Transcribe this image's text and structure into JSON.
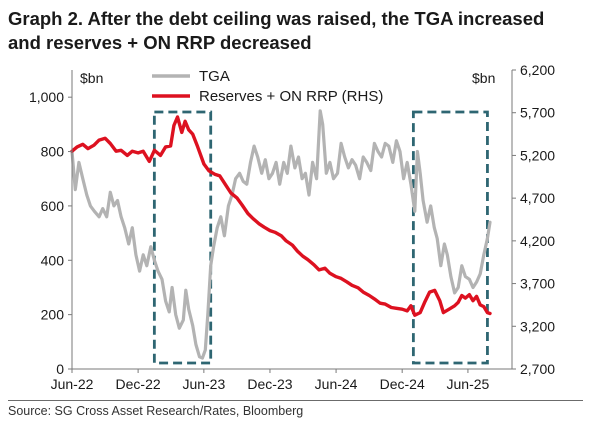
{
  "title_line1": "Graph 2.  After the debt ceiling was raised, the TGA increased",
  "title_line2": "and reserves + ON RRP decreased",
  "source": "Source: SG Cross Asset Research/Rates, Bloomberg",
  "chart_data": {
    "type": "line",
    "left_unit": "$bn",
    "right_unit": "$bn",
    "left_ylim": [
      0,
      1100
    ],
    "right_ylim": [
      2700,
      6200
    ],
    "left_ticks": [
      "1,000",
      "800",
      "600",
      "400",
      "200",
      "0"
    ],
    "left_tick_values": [
      1000,
      800,
      600,
      400,
      200,
      0
    ],
    "right_ticks": [
      "6,200",
      "5,700",
      "5,200",
      "4,700",
      "4,200",
      "3,700",
      "3,200",
      "2,700"
    ],
    "right_tick_values": [
      6200,
      5700,
      5200,
      4700,
      4200,
      3700,
      3200,
      2700
    ],
    "x_range": [
      "2022-06-01",
      "2025-10-01"
    ],
    "x_ticks": [
      {
        "label": "Jun-22",
        "date": "2022-06-01"
      },
      {
        "label": "Dec-22",
        "date": "2022-12-01"
      },
      {
        "label": "Jun-23",
        "date": "2023-06-01"
      },
      {
        "label": "Dec-23",
        "date": "2023-12-01"
      },
      {
        "label": "Jun-24",
        "date": "2024-06-01"
      },
      {
        "label": "Dec-24",
        "date": "2024-12-01"
      },
      {
        "label": "Jun-25",
        "date": "2025-06-01"
      }
    ],
    "highlight_periods": [
      {
        "x0": "2023-01-15",
        "x1": "2023-06-20"
      },
      {
        "x0": "2025-01-01",
        "x1": "2025-07-25"
      }
    ],
    "series": [
      {
        "name": "TGA",
        "axis": "left",
        "color": "#b3b3b3",
        "points": [
          [
            "2022-06-01",
            800
          ],
          [
            "2022-06-10",
            660
          ],
          [
            "2022-06-20",
            760
          ],
          [
            "2022-07-01",
            700
          ],
          [
            "2022-07-12",
            640
          ],
          [
            "2022-07-22",
            600
          ],
          [
            "2022-08-02",
            580
          ],
          [
            "2022-08-15",
            560
          ],
          [
            "2022-08-25",
            590
          ],
          [
            "2022-09-05",
            560
          ],
          [
            "2022-09-15",
            650
          ],
          [
            "2022-09-25",
            600
          ],
          [
            "2022-10-05",
            620
          ],
          [
            "2022-10-15",
            560
          ],
          [
            "2022-10-25",
            520
          ],
          [
            "2022-11-05",
            460
          ],
          [
            "2022-11-15",
            520
          ],
          [
            "2022-11-25",
            420
          ],
          [
            "2022-12-05",
            360
          ],
          [
            "2022-12-15",
            420
          ],
          [
            "2022-12-25",
            380
          ],
          [
            "2023-01-05",
            450
          ],
          [
            "2023-01-15",
            400
          ],
          [
            "2023-01-25",
            360
          ],
          [
            "2023-02-05",
            330
          ],
          [
            "2023-02-15",
            250
          ],
          [
            "2023-02-25",
            210
          ],
          [
            "2023-03-05",
            300
          ],
          [
            "2023-03-15",
            200
          ],
          [
            "2023-03-25",
            150
          ],
          [
            "2023-04-05",
            180
          ],
          [
            "2023-04-12",
            290
          ],
          [
            "2023-04-20",
            220
          ],
          [
            "2023-05-01",
            160
          ],
          [
            "2023-05-10",
            90
          ],
          [
            "2023-05-20",
            45
          ],
          [
            "2023-05-28",
            40
          ],
          [
            "2023-06-05",
            70
          ],
          [
            "2023-06-12",
            200
          ],
          [
            "2023-06-20",
            380
          ],
          [
            "2023-06-28",
            450
          ],
          [
            "2023-07-08",
            520
          ],
          [
            "2023-07-18",
            560
          ],
          [
            "2023-07-28",
            490
          ],
          [
            "2023-08-08",
            600
          ],
          [
            "2023-08-18",
            640
          ],
          [
            "2023-08-28",
            700
          ],
          [
            "2023-09-08",
            720
          ],
          [
            "2023-09-18",
            690
          ],
          [
            "2023-09-28",
            680
          ],
          [
            "2023-10-08",
            760
          ],
          [
            "2023-10-18",
            820
          ],
          [
            "2023-10-28",
            780
          ],
          [
            "2023-11-08",
            720
          ],
          [
            "2023-11-18",
            770
          ],
          [
            "2023-11-28",
            700
          ],
          [
            "2023-12-08",
            720
          ],
          [
            "2023-12-18",
            760
          ],
          [
            "2023-12-28",
            680
          ],
          [
            "2024-01-08",
            760
          ],
          [
            "2024-01-18",
            720
          ],
          [
            "2024-01-28",
            820
          ],
          [
            "2024-02-08",
            740
          ],
          [
            "2024-02-18",
            780
          ],
          [
            "2024-02-28",
            700
          ],
          [
            "2024-03-08",
            720
          ],
          [
            "2024-03-18",
            640
          ],
          [
            "2024-03-28",
            760
          ],
          [
            "2024-04-08",
            700
          ],
          [
            "2024-04-18",
            950
          ],
          [
            "2024-04-25",
            900
          ],
          [
            "2024-05-05",
            720
          ],
          [
            "2024-05-15",
            760
          ],
          [
            "2024-05-25",
            700
          ],
          [
            "2024-06-05",
            720
          ],
          [
            "2024-06-15",
            830
          ],
          [
            "2024-06-25",
            780
          ],
          [
            "2024-07-05",
            740
          ],
          [
            "2024-07-15",
            770
          ],
          [
            "2024-07-25",
            750
          ],
          [
            "2024-08-05",
            700
          ],
          [
            "2024-08-15",
            780
          ],
          [
            "2024-08-25",
            760
          ],
          [
            "2024-09-05",
            730
          ],
          [
            "2024-09-15",
            830
          ],
          [
            "2024-09-25",
            800
          ],
          [
            "2024-10-05",
            780
          ],
          [
            "2024-10-15",
            830
          ],
          [
            "2024-10-25",
            820
          ],
          [
            "2024-11-05",
            760
          ],
          [
            "2024-11-15",
            840
          ],
          [
            "2024-11-25",
            800
          ],
          [
            "2024-12-05",
            700
          ],
          [
            "2024-12-15",
            760
          ],
          [
            "2024-12-25",
            680
          ],
          [
            "2025-01-05",
            580
          ],
          [
            "2025-01-12",
            800
          ],
          [
            "2025-01-20",
            720
          ],
          [
            "2025-01-28",
            620
          ],
          [
            "2025-02-08",
            540
          ],
          [
            "2025-02-18",
            600
          ],
          [
            "2025-02-28",
            520
          ],
          [
            "2025-03-08",
            480
          ],
          [
            "2025-03-18",
            380
          ],
          [
            "2025-03-28",
            460
          ],
          [
            "2025-04-05",
            420
          ],
          [
            "2025-04-15",
            340
          ],
          [
            "2025-04-25",
            280
          ],
          [
            "2025-05-05",
            300
          ],
          [
            "2025-05-15",
            380
          ],
          [
            "2025-05-25",
            340
          ],
          [
            "2025-06-05",
            330
          ],
          [
            "2025-06-15",
            300
          ],
          [
            "2025-06-25",
            320
          ],
          [
            "2025-07-05",
            350
          ],
          [
            "2025-07-15",
            420
          ],
          [
            "2025-07-25",
            480
          ],
          [
            "2025-08-01",
            540
          ]
        ]
      },
      {
        "name": "Reserves + ON RRP (RHS)",
        "axis": "right",
        "color": "#dd1120",
        "points": [
          [
            "2022-06-01",
            5250
          ],
          [
            "2022-06-15",
            5300
          ],
          [
            "2022-07-01",
            5330
          ],
          [
            "2022-07-15",
            5280
          ],
          [
            "2022-08-01",
            5320
          ],
          [
            "2022-08-15",
            5380
          ],
          [
            "2022-09-01",
            5400
          ],
          [
            "2022-09-15",
            5340
          ],
          [
            "2022-10-01",
            5250
          ],
          [
            "2022-10-15",
            5260
          ],
          [
            "2022-11-01",
            5200
          ],
          [
            "2022-11-15",
            5250
          ],
          [
            "2022-12-01",
            5230
          ],
          [
            "2022-12-15",
            5250
          ],
          [
            "2023-01-01",
            5130
          ],
          [
            "2023-01-15",
            5260
          ],
          [
            "2023-02-01",
            5200
          ],
          [
            "2023-02-15",
            5300
          ],
          [
            "2023-03-01",
            5310
          ],
          [
            "2023-03-10",
            5550
          ],
          [
            "2023-03-20",
            5650
          ],
          [
            "2023-04-01",
            5470
          ],
          [
            "2023-04-10",
            5600
          ],
          [
            "2023-04-20",
            5500
          ],
          [
            "2023-05-01",
            5450
          ],
          [
            "2023-05-15",
            5300
          ],
          [
            "2023-06-01",
            5100
          ],
          [
            "2023-06-15",
            5020
          ],
          [
            "2023-07-01",
            4980
          ],
          [
            "2023-07-15",
            4960
          ],
          [
            "2023-08-01",
            4850
          ],
          [
            "2023-08-15",
            4760
          ],
          [
            "2023-09-01",
            4700
          ],
          [
            "2023-09-15",
            4620
          ],
          [
            "2023-10-01",
            4520
          ],
          [
            "2023-10-15",
            4460
          ],
          [
            "2023-11-01",
            4400
          ],
          [
            "2023-11-15",
            4360
          ],
          [
            "2023-12-01",
            4320
          ],
          [
            "2023-12-15",
            4300
          ],
          [
            "2024-01-01",
            4260
          ],
          [
            "2024-01-15",
            4200
          ],
          [
            "2024-02-01",
            4150
          ],
          [
            "2024-02-15",
            4080
          ],
          [
            "2024-03-01",
            4020
          ],
          [
            "2024-03-15",
            3980
          ],
          [
            "2024-04-01",
            3920
          ],
          [
            "2024-04-15",
            3860
          ],
          [
            "2024-05-01",
            3880
          ],
          [
            "2024-05-15",
            3820
          ],
          [
            "2024-06-01",
            3780
          ],
          [
            "2024-06-15",
            3760
          ],
          [
            "2024-07-01",
            3720
          ],
          [
            "2024-07-15",
            3680
          ],
          [
            "2024-08-01",
            3650
          ],
          [
            "2024-08-15",
            3600
          ],
          [
            "2024-09-01",
            3560
          ],
          [
            "2024-09-15",
            3520
          ],
          [
            "2024-10-01",
            3470
          ],
          [
            "2024-10-15",
            3460
          ],
          [
            "2024-11-01",
            3420
          ],
          [
            "2024-11-15",
            3410
          ],
          [
            "2024-12-01",
            3400
          ],
          [
            "2024-12-15",
            3380
          ],
          [
            "2024-12-25",
            3440
          ],
          [
            "2025-01-05",
            3330
          ],
          [
            "2025-01-20",
            3360
          ],
          [
            "2025-02-01",
            3480
          ],
          [
            "2025-02-15",
            3600
          ],
          [
            "2025-03-01",
            3620
          ],
          [
            "2025-03-15",
            3500
          ],
          [
            "2025-03-25",
            3360
          ],
          [
            "2025-04-10",
            3400
          ],
          [
            "2025-04-25",
            3440
          ],
          [
            "2025-05-05",
            3480
          ],
          [
            "2025-05-15",
            3560
          ],
          [
            "2025-05-25",
            3530
          ],
          [
            "2025-06-05",
            3570
          ],
          [
            "2025-06-15",
            3500
          ],
          [
            "2025-06-25",
            3550
          ],
          [
            "2025-07-05",
            3450
          ],
          [
            "2025-07-15",
            3430
          ],
          [
            "2025-07-25",
            3360
          ],
          [
            "2025-08-01",
            3350
          ]
        ]
      }
    ]
  }
}
